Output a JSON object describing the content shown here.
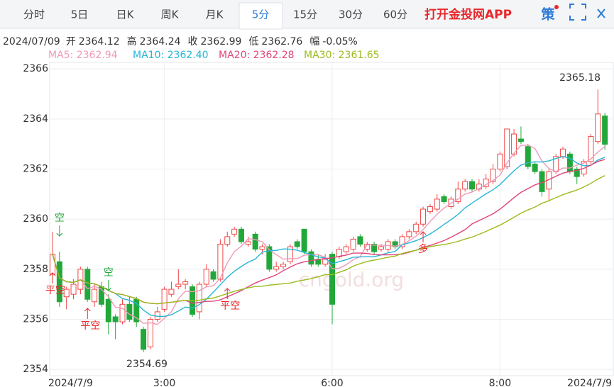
{
  "tabs": [
    "分时",
    "5日",
    "日K",
    "周K",
    "月K",
    "5分",
    "15分",
    "30分",
    "60分"
  ],
  "active_tab": "5分",
  "app_link": "打开金投网APP",
  "strategy": "策",
  "info": {
    "date": "2024/07/09",
    "items": [
      {
        "label": "开",
        "value": 2364.12
      },
      {
        "label": "高",
        "value": 2364.24
      },
      {
        "label": "收",
        "value": 2362.99
      },
      {
        "label": "低",
        "value": 2362.76
      },
      {
        "label": "幅",
        "value": "-0.05%"
      }
    ]
  },
  "chart_data": {
    "type": "candlestick",
    "categories": [
      "2024/7/9",
      null,
      null,
      null,
      null,
      null,
      null,
      null,
      null,
      null,
      null,
      null,
      null,
      null,
      null,
      null,
      "3:00",
      null,
      null,
      null,
      null,
      null,
      null,
      null,
      null,
      null,
      null,
      null,
      null,
      null,
      null,
      null,
      null,
      null,
      null,
      null,
      null,
      null,
      null,
      null,
      "6:00",
      null,
      null,
      null,
      null,
      null,
      null,
      null,
      null,
      null,
      null,
      null,
      null,
      null,
      null,
      null,
      null,
      null,
      null,
      null,
      null,
      null,
      null,
      null,
      "8:00",
      null,
      null,
      null,
      null,
      null,
      null,
      null,
      null,
      null,
      null,
      null,
      null,
      null,
      null,
      "2024/7/9"
    ],
    "open": [
      2357.8,
      2358.3,
      2356.9,
      2357.0,
      2357.2,
      2358.0,
      2356.7,
      2357.3,
      2356.8,
      2356.1,
      2355.9,
      2356.6,
      2356.8,
      2355.6,
      2354.9,
      2356.0,
      2356.4,
      2357.0,
      2357.3,
      2357.4,
      2357.3,
      2356.3,
      2357.4,
      2357.9,
      2357.6,
      2359.0,
      2359.4,
      2359.6,
      2359.0,
      2359.4,
      2358.8,
      2358.9,
      2358.0,
      2358.1,
      2358.3,
      2359.1,
      2359.6,
      2358.7,
      2358.4,
      2358.2,
      2358.6,
      2358.5,
      2358.7,
      2358.8,
      2359.3,
      2358.8,
      2359.0,
      2358.8,
      2358.8,
      2359.1,
      2358.9,
      2359.3,
      2359.5,
      2359.8,
      2360.3,
      2360.4,
      2360.9,
      2360.5,
      2360.7,
      2361.2,
      2361.5,
      2361.2,
      2361.3,
      2361.5,
      2362.0,
      2362.1,
      2362.6,
      2363.2,
      2362.9,
      2362.2,
      2361.9,
      2361.2,
      2361.9,
      2362.5,
      2362.6,
      2362.0,
      2361.8,
      2362.3,
      2363.1,
      2364.12
    ],
    "high": [
      2359.5,
      2358.7,
      2357.3,
      2357.6,
      2358.1,
      2358.1,
      2357.4,
      2357.5,
      2357.0,
      2356.2,
      2356.8,
      2356.9,
      2356.9,
      2355.7,
      2356.1,
      2356.5,
      2357.3,
      2357.5,
      2358.0,
      2357.6,
      2357.4,
      2357.5,
      2358.2,
      2358.0,
      2359.2,
      2359.5,
      2359.7,
      2359.7,
      2359.3,
      2359.5,
      2359.0,
      2359.0,
      2358.3,
      2358.3,
      2359.0,
      2359.2,
      2359.6,
      2358.8,
      2358.6,
      2358.6,
      2358.7,
      2358.9,
      2359.0,
      2359.3,
      2359.4,
      2359.1,
      2359.1,
      2359.0,
      2359.2,
      2359.2,
      2359.4,
      2359.6,
      2359.9,
      2360.5,
      2360.6,
      2361.0,
      2361.0,
      2360.9,
      2361.5,
      2361.6,
      2361.6,
      2361.6,
      2361.8,
      2362.2,
      2362.7,
      2363.6,
      2363.6,
      2363.7,
      2363.0,
      2362.3,
      2362.0,
      2362.0,
      2362.6,
      2362.9,
      2362.7,
      2362.1,
      2362.4,
      2363.4,
      2365.18,
      2364.24
    ],
    "low": [
      2357.5,
      2356.5,
      2356.4,
      2356.8,
      2357.0,
      2356.7,
      2356.5,
      2356.5,
      2355.4,
      2355.2,
      2355.8,
      2355.9,
      2355.7,
      2354.69,
      2354.8,
      2355.9,
      2356.3,
      2356.9,
      2357.2,
      2357.2,
      2356.1,
      2356.0,
      2357.3,
      2357.5,
      2357.5,
      2358.9,
      2359.3,
      2359.0,
      2358.9,
      2358.7,
      2358.6,
      2357.9,
      2357.9,
      2358.0,
      2358.2,
      2358.8,
      2358.6,
      2358.1,
      2358.1,
      2358.1,
      2355.8,
      2358.4,
      2358.6,
      2358.7,
      2358.9,
      2358.7,
      2358.6,
      2358.7,
      2358.7,
      2358.8,
      2358.8,
      2359.2,
      2359.4,
      2359.7,
      2360.2,
      2360.3,
      2360.6,
      2360.4,
      2360.6,
      2361.1,
      2361.1,
      2361.1,
      2361.2,
      2361.4,
      2361.9,
      2362.0,
      2362.5,
      2363.0,
      2362.0,
      2361.8,
      2360.9,
      2360.7,
      2361.8,
      2362.4,
      2361.8,
      2361.4,
      2361.7,
      2362.2,
      2363.0,
      2362.76
    ],
    "close": [
      2358.6,
      2356.7,
      2357.2,
      2357.4,
      2358.0,
      2356.8,
      2357.2,
      2356.6,
      2355.9,
      2355.9,
      2356.6,
      2356.0,
      2355.9,
      2354.8,
      2356.0,
      2356.3,
      2357.2,
      2357.2,
      2357.4,
      2357.5,
      2356.2,
      2357.4,
      2358.0,
      2357.6,
      2359.0,
      2359.3,
      2359.6,
      2359.1,
      2359.1,
      2358.8,
      2358.9,
      2358.0,
      2358.1,
      2358.2,
      2358.9,
      2358.9,
      2358.7,
      2358.2,
      2358.2,
      2358.4,
      2356.6,
      2358.8,
      2358.9,
      2359.2,
      2359.0,
      2359.0,
      2358.7,
      2358.9,
      2359.1,
      2358.9,
      2359.3,
      2359.5,
      2359.8,
      2360.4,
      2360.5,
      2360.8,
      2360.7,
      2360.8,
      2361.2,
      2361.5,
      2361.2,
      2361.4,
      2361.6,
      2362.0,
      2362.6,
      2363.6,
      2363.4,
      2363.1,
      2362.1,
      2361.9,
      2361.1,
      2361.9,
      2362.5,
      2362.8,
      2361.9,
      2361.7,
      2362.3,
      2363.3,
      2364.2,
      2362.99
    ],
    "up_color": "#f04848",
    "down_color": "#22a83a",
    "ylim": [
      2353.75,
      2366.26
    ],
    "yticks": [
      2354,
      2356,
      2358,
      2360,
      2362,
      2364,
      2366
    ],
    "grid": true,
    "moving_averages": [
      {
        "label": "MA5: 2362.94",
        "color": "#f09ab8"
      },
      {
        "label": "MA10: 2362.40",
        "color": "#25b5d6"
      },
      {
        "label": "MA20: 2362.28",
        "color": "#e0457b"
      },
      {
        "label": "MA30: 2361.65",
        "color": "#9bbb1c"
      }
    ],
    "signals": [
      "空",
      "平空",
      "平空",
      "空",
      "平空",
      "多"
    ],
    "watermark": "cngold.org"
  }
}
